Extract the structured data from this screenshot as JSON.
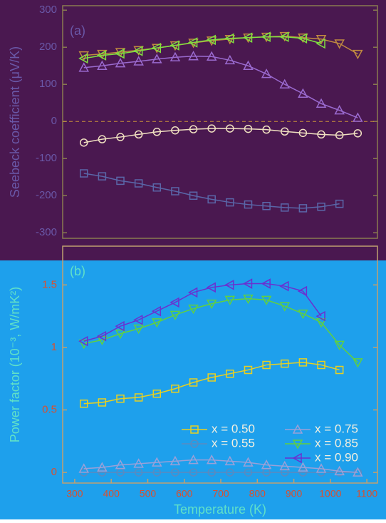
{
  "chart_data": [
    {
      "type": "line",
      "panel_label": "(a)",
      "ylabel": "Seebeck coefficient (μV/K)",
      "background": "#4a1850",
      "frame_color": "#8a7a50",
      "tick_color": "#6a58a8",
      "label_color": "#6a58a8",
      "xlim": [
        267,
        1129
      ],
      "ylim": [
        -315,
        312
      ],
      "yticks": [
        300,
        200,
        100,
        0,
        -100,
        -200,
        -300
      ],
      "zero_line": true,
      "zero_line_color": "#c8903a",
      "series": [
        {
          "name": "x = 0.50",
          "color": "#5a66a8",
          "marker": "square",
          "x": [
            325,
            375,
            425,
            475,
            525,
            575,
            625,
            675,
            725,
            775,
            825,
            875,
            925,
            975,
            1025
          ],
          "values": [
            -140,
            -148,
            -160,
            -167,
            -178,
            -188,
            -200,
            -210,
            -218,
            -224,
            -228,
            -232,
            -234,
            -230,
            -222
          ]
        },
        {
          "name": "x = 0.55",
          "color": "#f0e0c0",
          "marker": "circle",
          "x": [
            325,
            375,
            425,
            475,
            525,
            575,
            625,
            675,
            725,
            775,
            825,
            875,
            925,
            975,
            1025,
            1075
          ],
          "values": [
            -57,
            -48,
            -42,
            -35,
            -28,
            -24,
            -21,
            -19,
            -19,
            -20,
            -22,
            -27,
            -31,
            -35,
            -37,
            -32
          ]
        },
        {
          "name": "x = 0.75",
          "color": "#9a6acf",
          "marker": "triangle-up",
          "x": [
            325,
            375,
            425,
            475,
            525,
            575,
            625,
            675,
            725,
            775,
            825,
            875,
            925,
            975,
            1025,
            1075
          ],
          "values": [
            145,
            150,
            157,
            162,
            168,
            173,
            176,
            175,
            165,
            150,
            128,
            100,
            75,
            48,
            30,
            10
          ]
        },
        {
          "name": "x = 0.85",
          "color": "#c08a40",
          "marker": "triangle-down",
          "x": [
            325,
            375,
            425,
            475,
            525,
            575,
            625,
            675,
            725,
            775,
            825,
            875,
            925,
            975,
            1025,
            1075
          ],
          "values": [
            178,
            182,
            187,
            192,
            198,
            205,
            212,
            218,
            222,
            226,
            228,
            230,
            226,
            222,
            210,
            182
          ]
        },
        {
          "name": "x = 0.90",
          "color": "#80e040",
          "marker": "triangle-left",
          "x": [
            325,
            375,
            425,
            475,
            525,
            575,
            625,
            675,
            725,
            775,
            825,
            875,
            925,
            975
          ],
          "values": [
            170,
            178,
            183,
            190,
            198,
            205,
            213,
            220,
            224,
            226,
            228,
            228,
            224,
            210
          ]
        }
      ]
    },
    {
      "type": "line",
      "panel_label": "(b)",
      "ylabel": "Power factor (10⁻³, W/mK²)",
      "xlabel": "Temperature (K)",
      "background": "#1ea0ec",
      "frame_color": "#c0a070",
      "tick_color": "#d85030",
      "label_color": "#60e0c8",
      "xlim": [
        267,
        1129
      ],
      "ylim": [
        -0.085,
        1.81
      ],
      "xticks": [
        300,
        400,
        500,
        600,
        700,
        800,
        900,
        1000,
        1100
      ],
      "yticks": [
        0,
        0.5,
        1,
        1.5
      ],
      "legend_text_color": "#f4f0e0",
      "series": [
        {
          "name": "x = 0.50",
          "color": "#e8d020",
          "marker": "square",
          "x": [
            325,
            375,
            425,
            475,
            525,
            575,
            625,
            675,
            725,
            775,
            825,
            875,
            925,
            975,
            1025
          ],
          "values": [
            0.55,
            0.56,
            0.59,
            0.6,
            0.63,
            0.67,
            0.72,
            0.76,
            0.79,
            0.82,
            0.86,
            0.87,
            0.88,
            0.86,
            0.82
          ]
        },
        {
          "name": "x = 0.55",
          "color": "#5a8ac0",
          "marker": "circle",
          "x": [
            325,
            375,
            425,
            475,
            525,
            575,
            625,
            675,
            725,
            775,
            825,
            875,
            925,
            975,
            1025,
            1075
          ],
          "values": [
            0,
            0,
            0,
            0,
            0,
            0,
            0,
            0,
            0,
            0,
            0,
            0,
            0,
            0,
            0,
            0
          ]
        },
        {
          "name": "x = 0.75",
          "color": "#9aa0d8",
          "marker": "triangle-up",
          "x": [
            325,
            375,
            425,
            475,
            525,
            575,
            625,
            675,
            725,
            775,
            825,
            875,
            925,
            975,
            1025,
            1075
          ],
          "values": [
            0.03,
            0.04,
            0.06,
            0.07,
            0.08,
            0.09,
            0.1,
            0.1,
            0.09,
            0.08,
            0.06,
            0.05,
            0.04,
            0.03,
            0.01,
            0
          ]
        },
        {
          "name": "x = 0.85",
          "color": "#60d040",
          "marker": "triangle-down",
          "x": [
            325,
            375,
            425,
            475,
            525,
            575,
            625,
            675,
            725,
            775,
            825,
            875,
            925,
            975,
            1025,
            1075
          ],
          "values": [
            1.03,
            1.06,
            1.11,
            1.15,
            1.2,
            1.26,
            1.31,
            1.35,
            1.38,
            1.39,
            1.38,
            1.33,
            1.27,
            1.2,
            1.02,
            0.88
          ]
        },
        {
          "name": "x = 0.90",
          "color": "#6a30d0",
          "marker": "triangle-left",
          "x": [
            325,
            375,
            425,
            475,
            525,
            575,
            625,
            675,
            725,
            775,
            825,
            875,
            925,
            975
          ],
          "values": [
            1.05,
            1.09,
            1.17,
            1.22,
            1.29,
            1.36,
            1.44,
            1.48,
            1.5,
            1.51,
            1.51,
            1.49,
            1.45,
            1.25
          ]
        }
      ]
    }
  ]
}
